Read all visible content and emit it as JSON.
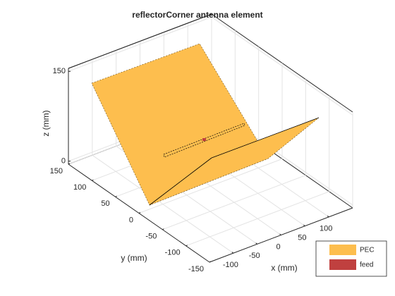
{
  "chart_data": {
    "type": "surface3d",
    "title": "reflectorCorner antenna element",
    "xlabel": "x (mm)",
    "ylabel": "y (mm)",
    "zlabel": "z (mm)",
    "xlim": [
      -150,
      150
    ],
    "ylim": [
      -150,
      150
    ],
    "zlim": [
      -5,
      155
    ],
    "xticks": [
      -100,
      -50,
      0,
      50,
      100
    ],
    "yticks": [
      -150,
      -100,
      -50,
      0,
      50,
      100,
      150
    ],
    "zticks": [
      0,
      150
    ],
    "grid": true,
    "legend": [
      {
        "name": "PEC",
        "color": "#fdbe4e"
      },
      {
        "name": "feed",
        "color": "#c0403f"
      }
    ],
    "legend_position": "lower right"
  }
}
